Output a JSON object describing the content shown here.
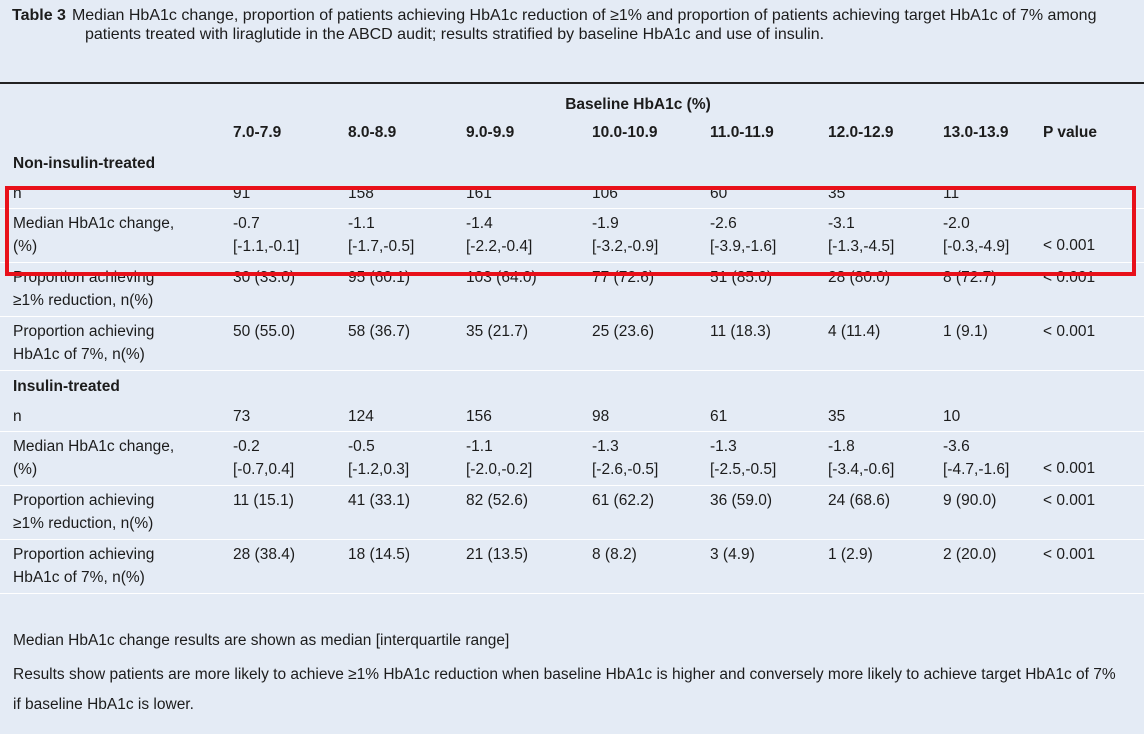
{
  "caption": {
    "label": "Table 3",
    "text": "Median HbA1c change, proportion of patients achieving HbA1c reduction of ≥1% and proportion of patients achieving target HbA1c of 7% among patients treated with liraglutide in the ABCD audit; results stratified by baseline HbA1c and use of insulin."
  },
  "table": {
    "super_header": "Baseline HbA1c (%)",
    "columns": [
      "7.0-7.9",
      "8.0-8.9",
      "9.0-9.9",
      "10.0-10.9",
      "11.0-11.9",
      "12.0-12.9",
      "13.0-13.9",
      "P value"
    ],
    "sections": [
      {
        "title": "Non-insulin-treated",
        "rows": [
          {
            "label1": "n",
            "label2": "",
            "values": [
              "91",
              "158",
              "161",
              "106",
              "60",
              "35",
              "11"
            ],
            "p": ""
          },
          {
            "label1": "Median HbA1c change,",
            "label2": "(%)",
            "values": [
              "-0.7",
              "-1.1",
              "-1.4",
              "-1.9",
              "-2.6",
              "-3.1",
              "-2.0"
            ],
            "ranges": [
              "[-1.1,-0.1]",
              "[-1.7,-0.5]",
              "[-2.2,-0.4]",
              "[-3.2,-0.9]",
              "[-3.9,-1.6]",
              "[-1.3,-4.5]",
              "[-0.3,-4.9]"
            ],
            "p": "< 0.001"
          },
          {
            "label1": "Proportion achieving",
            "label2": "≥1% reduction, n(%)",
            "values": [
              "30 (33.0)",
              "95 (60.1)",
              "103 (64.0)",
              "77 (72.6)",
              "51 (85.0)",
              "28 (80.0)",
              "8 (72.7)"
            ],
            "p": "< 0.001"
          },
          {
            "label1": "Proportion achieving",
            "label2": "HbA1c of 7%, n(%)",
            "values": [
              "50 (55.0)",
              "58 (36.7)",
              "35 (21.7)",
              "25 (23.6)",
              "11 (18.3)",
              "4 (11.4)",
              "1 (9.1)"
            ],
            "p": "< 0.001"
          }
        ]
      },
      {
        "title": "Insulin-treated",
        "rows": [
          {
            "label1": "n",
            "label2": "",
            "values": [
              "73",
              "124",
              "156",
              "98",
              "61",
              "35",
              "10"
            ],
            "p": ""
          },
          {
            "label1": "Median HbA1c change,",
            "label2": "(%)",
            "values": [
              "-0.2",
              "-0.5",
              "-1.1",
              "-1.3",
              "-1.3",
              "-1.8",
              "-3.6"
            ],
            "ranges": [
              "[-0.7,0.4]",
              "[-1.2,0.3]",
              "[-2.0,-0.2]",
              "[-2.6,-0.5]",
              "[-2.5,-0.5]",
              "[-3.4,-0.6]",
              "[-4.7,-1.6]"
            ],
            "p": "< 0.001"
          },
          {
            "label1": "Proportion achieving",
            "label2": "≥1% reduction, n(%)",
            "values": [
              "11 (15.1)",
              "41 (33.1)",
              "82 (52.6)",
              "61 (62.2)",
              "36 (59.0)",
              "24 (68.6)",
              "9 (90.0)"
            ],
            "p": "< 0.001"
          },
          {
            "label1": "Proportion achieving",
            "label2": "HbA1c of 7%, n(%)",
            "values": [
              "28 (38.4)",
              "18 (14.5)",
              "21 (13.5)",
              "8 (8.2)",
              "3 (4.9)",
              "1 (2.9)",
              "2 (20.0)"
            ],
            "p": "< 0.001"
          }
        ]
      }
    ]
  },
  "notes": [
    "Median HbA1c change results are shown as median [interquartile range]",
    "Results show patients are more likely to achieve ≥1% HbA1c reduction when baseline HbA1c is higher and conversely more likely to achieve target HbA1c of 7% if baseline HbA1c is lower."
  ],
  "highlight_color": "#e8101a"
}
